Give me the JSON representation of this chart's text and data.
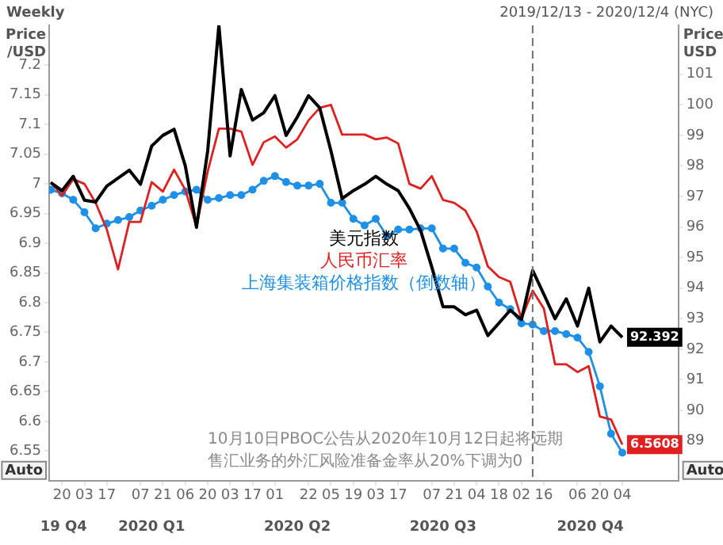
{
  "chart_data": {
    "type": "line",
    "title": "Weekly",
    "subtitle": "2019/12/13 - 2020/12/4 (NYC)",
    "ylabel": "Price /USD",
    "y2label": "Price USD",
    "x": [
      "2019-12-13",
      "2019-12-20",
      "2019-12-27",
      "2020-01-03",
      "2020-01-10",
      "2020-01-17",
      "2020-01-24",
      "2020-01-31",
      "2020-02-07",
      "2020-02-14",
      "2020-02-21",
      "2020-02-28",
      "2020-03-06",
      "2020-03-13",
      "2020-03-20",
      "2020-03-27",
      "2020-04-03",
      "2020-04-10",
      "2020-04-17",
      "2020-04-24",
      "2020-05-01",
      "2020-05-08",
      "2020-05-15",
      "2020-05-22",
      "2020-05-29",
      "2020-06-05",
      "2020-06-12",
      "2020-06-19",
      "2020-06-26",
      "2020-07-03",
      "2020-07-10",
      "2020-07-17",
      "2020-07-24",
      "2020-07-31",
      "2020-08-07",
      "2020-08-14",
      "2020-08-21",
      "2020-08-28",
      "2020-09-04",
      "2020-09-11",
      "2020-09-18",
      "2020-09-25",
      "2020-10-02",
      "2020-10-09",
      "2020-10-16",
      "2020-10-23",
      "2020-10-30",
      "2020-11-06",
      "2020-11-13",
      "2020-11-20",
      "2020-11-27",
      "2020-12-04"
    ],
    "series": [
      {
        "name": "美元指数",
        "color": "#000000",
        "axis": "y2",
        "marker": "none",
        "values": [
          97.45,
          97.19,
          97.66,
          96.88,
          96.82,
          97.34,
          97.6,
          97.86,
          97.4,
          98.65,
          99.0,
          99.2,
          98.0,
          95.99,
          98.49,
          102.6,
          98.33,
          100.5,
          99.5,
          99.74,
          100.3,
          99.0,
          99.6,
          100.3,
          99.9,
          98.49,
          96.93,
          97.19,
          97.4,
          97.66,
          97.4,
          97.19,
          96.61,
          95.89,
          94.69,
          93.39,
          93.39,
          93.13,
          93.28,
          92.45,
          92.86,
          93.28,
          92.97,
          94.58,
          93.8,
          93.0,
          93.65,
          92.76,
          94.0,
          92.24,
          92.76,
          92.392
        ],
        "value_labels": [
          null,
          null,
          null,
          null,
          null,
          null,
          null,
          null,
          null,
          null,
          null,
          null,
          null,
          null,
          null,
          null,
          null,
          null,
          null,
          null,
          null,
          null,
          null,
          null,
          null,
          null,
          null,
          null,
          null,
          null,
          null,
          null,
          null,
          null,
          null,
          null,
          null,
          null,
          null,
          null,
          null,
          null,
          null,
          null,
          null,
          null,
          null,
          null,
          null,
          null,
          null,
          "92.392"
        ]
      },
      {
        "name": "人民币汇率",
        "color": "#e02020",
        "axis": "y",
        "marker": "none",
        "values": [
          7.003,
          6.98,
          7.008,
          7.0,
          6.968,
          6.923,
          6.856,
          6.936,
          6.936,
          7.003,
          6.987,
          7.024,
          6.99,
          6.928,
          7.021,
          7.093,
          7.093,
          7.088,
          7.032,
          7.07,
          7.08,
          7.061,
          7.075,
          7.107,
          7.128,
          7.133,
          7.083,
          7.083,
          7.083,
          7.075,
          7.078,
          7.068,
          7.0,
          6.992,
          7.013,
          6.973,
          6.968,
          6.955,
          6.92,
          6.861,
          6.843,
          6.835,
          6.773,
          6.82,
          6.79,
          6.696,
          6.696,
          6.683,
          6.693,
          6.608,
          6.603,
          6.5608
        ],
        "value_labels": [
          null,
          null,
          null,
          null,
          null,
          null,
          null,
          null,
          null,
          null,
          null,
          null,
          null,
          null,
          null,
          null,
          null,
          null,
          null,
          null,
          null,
          null,
          null,
          null,
          null,
          null,
          null,
          null,
          null,
          null,
          null,
          null,
          null,
          null,
          null,
          null,
          null,
          null,
          null,
          null,
          null,
          null,
          null,
          null,
          null,
          null,
          null,
          null,
          null,
          null,
          null,
          "6.5608"
        ]
      },
      {
        "name": "上海集装箱价格指数（倒数轴）",
        "color": "#1e90e8",
        "axis": "y",
        "marker": "circle",
        "values": [
          6.99,
          6.984,
          6.973,
          6.952,
          6.925,
          6.933,
          6.939,
          6.944,
          6.955,
          6.963,
          6.973,
          6.981,
          6.987,
          6.99,
          6.973,
          6.976,
          6.981,
          6.981,
          6.99,
          7.005,
          7.013,
          7.003,
          6.997,
          6.997,
          7.0,
          6.968,
          6.968,
          6.941,
          6.93,
          6.941,
          6.912,
          6.923,
          6.923,
          6.925,
          6.925,
          6.891,
          6.891,
          6.867,
          6.859,
          6.827,
          6.8,
          6.789,
          6.765,
          6.763,
          6.752,
          6.752,
          6.747,
          6.741,
          6.717,
          6.659,
          6.579,
          6.547
        ]
      }
    ],
    "xlim": [
      "2019-12-12",
      "2021-01-08"
    ],
    "xticks": [
      {
        "value": "2019-12-20",
        "label": "20"
      },
      {
        "value": "2020-01-03",
        "label": "03"
      },
      {
        "value": "2020-01-17",
        "label": "17"
      },
      {
        "value": "2020-02-07",
        "label": "07"
      },
      {
        "value": "2020-02-21",
        "label": "21"
      },
      {
        "value": "2020-03-06",
        "label": "06"
      },
      {
        "value": "2020-03-20",
        "label": "20"
      },
      {
        "value": "2020-04-03",
        "label": "03"
      },
      {
        "value": "2020-04-17",
        "label": "17"
      },
      {
        "value": "2020-05-01",
        "label": "01"
      },
      {
        "value": "2020-05-22",
        "label": "22"
      },
      {
        "value": "2020-06-05",
        "label": "05"
      },
      {
        "value": "2020-06-19",
        "label": "19"
      },
      {
        "value": "2020-07-03",
        "label": "03"
      },
      {
        "value": "2020-07-17",
        "label": "17"
      },
      {
        "value": "2020-08-07",
        "label": "07"
      },
      {
        "value": "2020-08-21",
        "label": "21"
      },
      {
        "value": "2020-09-04",
        "label": "04"
      },
      {
        "value": "2020-09-18",
        "label": "18"
      },
      {
        "value": "2020-10-02",
        "label": "02"
      },
      {
        "value": "2020-10-16",
        "label": "16"
      },
      {
        "value": "2020-11-06",
        "label": "06"
      },
      {
        "value": "2020-11-20",
        "label": "20"
      },
      {
        "value": "2020-12-04",
        "label": "04"
      }
    ],
    "x2lim": [
      "2019-12-12",
      "2021-01-08"
    ],
    "x2ticks": [
      {
        "value": "2019-12-21",
        "label": "19 Q4"
      },
      {
        "value": "2020-02-14",
        "label": "2020 Q1"
      },
      {
        "value": "2020-05-15",
        "label": "2020 Q2"
      },
      {
        "value": "2020-08-14",
        "label": "2020 Q3"
      },
      {
        "value": "2020-11-14",
        "label": "2020 Q4"
      }
    ],
    "ylim": [
      6.5,
      7.267
    ],
    "yticks": [
      6.55,
      6.6,
      6.65,
      6.7,
      6.75,
      6.8,
      6.85,
      6.9,
      6.95,
      7,
      7.05,
      7.1,
      7.15,
      7.2
    ],
    "y2lim": [
      87.7,
      102.6
    ],
    "y2ticks": [
      89,
      90,
      91,
      92,
      93,
      94,
      95,
      96,
      97,
      98,
      99,
      100,
      101
    ],
    "ref_lines": [
      {
        "axis": "x",
        "value": "2020-10-09",
        "color": "#707070",
        "line_style": "dashed"
      }
    ],
    "annotations": [
      "10月10日PBOC公告从2020年10月12日起将远期售汇业务的外汇风险准备金率从20%下调为0",
      "Auto",
      "Auto"
    ],
    "legend": "center",
    "grid": false
  }
}
